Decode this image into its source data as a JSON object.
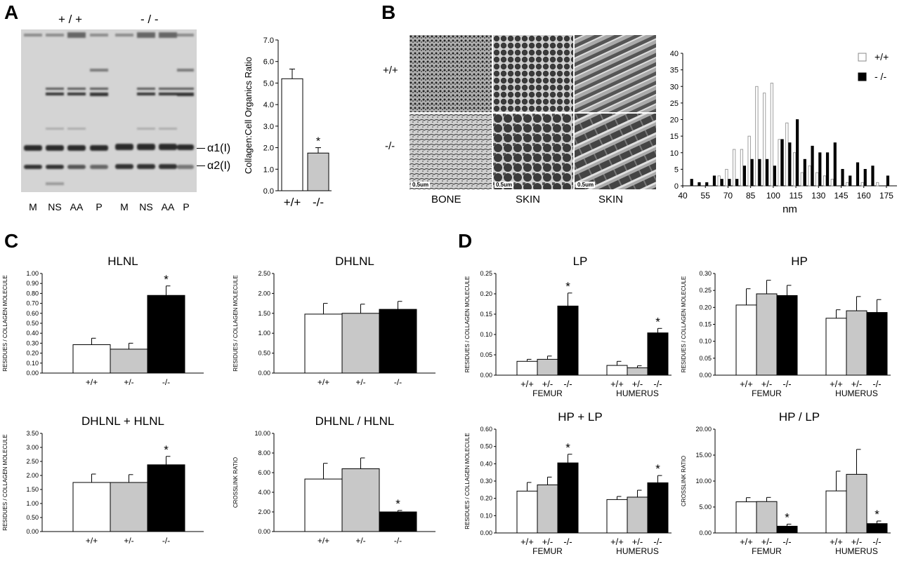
{
  "panels": {
    "A": "A",
    "B": "B",
    "C": "C",
    "D": "D"
  },
  "gel": {
    "genotypes": [
      "+ / +",
      "- / -"
    ],
    "lanes": [
      "M",
      "NS",
      "AA",
      "P",
      "M",
      "NS",
      "AA",
      "P"
    ],
    "bands": [
      "α1(I)",
      "α2(I)"
    ]
  },
  "em": {
    "rows": [
      "+/+",
      "-/-"
    ],
    "columns": [
      "BONE",
      "SKIN",
      "SKIN"
    ],
    "scale_bar": "0.5um"
  },
  "chart_data": [
    {
      "id": "ratio",
      "type": "bar",
      "ylabel": "Collagen:Cell Organics Ratio",
      "ylim": [
        0,
        7
      ],
      "yticks": [
        "0.0",
        "1.0",
        "2.0",
        "3.0",
        "4.0",
        "5.0",
        "6.0",
        "7.0"
      ],
      "categories": [
        "+/+",
        "-/-"
      ],
      "values": [
        5.2,
        1.75
      ],
      "errors": [
        0.45,
        0.25
      ],
      "colors": [
        "#ffffff",
        "#c8c8c8"
      ],
      "sig": [
        "",
        "*"
      ]
    },
    {
      "id": "hist",
      "type": "bar",
      "xlabel": "nm",
      "ylim": [
        0,
        40
      ],
      "yticks": [
        "0",
        "5",
        "10",
        "15",
        "20",
        "25",
        "30",
        "35",
        "40"
      ],
      "xticks": [
        "40",
        "55",
        "70",
        "85",
        "100",
        "115",
        "130",
        "145",
        "160",
        "175"
      ],
      "x": [
        45,
        50,
        55,
        60,
        65,
        70,
        75,
        80,
        85,
        90,
        95,
        100,
        105,
        110,
        115,
        120,
        125,
        130,
        135,
        140,
        145,
        150,
        155,
        160,
        165,
        170,
        175
      ],
      "series": [
        {
          "name": "+/+",
          "color": "#ffffff",
          "values": [
            0,
            0,
            0,
            0,
            3,
            5,
            11,
            11,
            15,
            30,
            28,
            31,
            14,
            19,
            10,
            4,
            6,
            4,
            3,
            2,
            0,
            1,
            0,
            1,
            0,
            1,
            0
          ]
        },
        {
          "name": "- /-",
          "color": "#000000",
          "values": [
            2,
            1,
            1,
            3,
            2,
            2,
            2,
            6,
            8,
            8,
            8,
            6,
            14,
            13,
            20,
            8,
            12,
            10,
            10,
            13,
            5,
            3,
            7,
            5,
            6,
            0,
            3
          ]
        }
      ]
    },
    {
      "id": "HLNL",
      "type": "bar",
      "title": "HLNL",
      "ylabel": "RESIDUES / COLLAGEN MOLECULE",
      "ylim": [
        0,
        1.0
      ],
      "yticks": [
        "0.00",
        "0.10",
        "0.20",
        "0.30",
        "0.40",
        "0.50",
        "0.60",
        "0.70",
        "0.80",
        "0.90",
        "1.00"
      ],
      "categories": [
        "+/+",
        "+/-",
        "-/-"
      ],
      "values": [
        0.285,
        0.24,
        0.78
      ],
      "errors": [
        0.065,
        0.06,
        0.095
      ],
      "colors": [
        "#ffffff",
        "#c8c8c8",
        "#000000"
      ],
      "sig": [
        "",
        "",
        "*"
      ]
    },
    {
      "id": "DHLNL",
      "type": "bar",
      "title": "DHLNL",
      "ylabel": "RESIDUES / COLLAGEN MOLECULE",
      "ylim": [
        0,
        2.5
      ],
      "yticks": [
        "0.00",
        "0.50",
        "1.00",
        "1.50",
        "2.00",
        "2.50"
      ],
      "categories": [
        "+/+",
        "+/-",
        "-/-"
      ],
      "values": [
        1.48,
        1.5,
        1.6
      ],
      "errors": [
        0.27,
        0.23,
        0.2
      ],
      "colors": [
        "#ffffff",
        "#c8c8c8",
        "#000000"
      ],
      "sig": [
        "",
        "",
        ""
      ]
    },
    {
      "id": "DHLNL_HLNL_sum",
      "type": "bar",
      "title": "DHLNL + HLNL",
      "ylabel": "RESIDUES / COLLAGEN MOLECULE",
      "ylim": [
        0,
        3.5
      ],
      "yticks": [
        "0.00",
        "0.50",
        "1.00",
        "1.50",
        "2.00",
        "2.50",
        "3.00",
        "3.50"
      ],
      "categories": [
        "+/+",
        "+/-",
        "-/-"
      ],
      "values": [
        1.75,
        1.75,
        2.38
      ],
      "errors": [
        0.3,
        0.28,
        0.3
      ],
      "colors": [
        "#ffffff",
        "#c8c8c8",
        "#000000"
      ],
      "sig": [
        "",
        "",
        "*"
      ]
    },
    {
      "id": "DHLNL_HLNL_ratio",
      "type": "bar",
      "title": "DHLNL / HLNL",
      "ylabel": "CROSSLINK RATIO",
      "ylim": [
        0,
        10
      ],
      "yticks": [
        "0.00",
        "2.00",
        "4.00",
        "6.00",
        "8.00",
        "10.00"
      ],
      "categories": [
        "+/+",
        "+/-",
        "-/-"
      ],
      "values": [
        5.35,
        6.4,
        2.0
      ],
      "errors": [
        1.6,
        1.1,
        0.15
      ],
      "colors": [
        "#ffffff",
        "#c8c8c8",
        "#000000"
      ],
      "sig": [
        "",
        "",
        "*"
      ]
    },
    {
      "id": "LP",
      "type": "bar",
      "title": "LP",
      "ylabel": "RESIDUES / COLLAGEN MOLECULE",
      "ylim": [
        0,
        0.25
      ],
      "yticks": [
        "0.00",
        "0.05",
        "0.10",
        "0.15",
        "0.20",
        "0.25"
      ],
      "groups": [
        "FEMUR",
        "HUMERUS"
      ],
      "categories": [
        "+/+",
        "+/-",
        "-/-"
      ],
      "values": [
        [
          0.034,
          0.039,
          0.17
        ],
        [
          0.024,
          0.018,
          0.104
        ]
      ],
      "errors": [
        [
          0.005,
          0.008,
          0.032
        ],
        [
          0.01,
          0.005,
          0.011
        ]
      ],
      "colors": [
        "#ffffff",
        "#c8c8c8",
        "#000000"
      ],
      "sig": [
        [
          "",
          "",
          "*"
        ],
        [
          "",
          "",
          "*"
        ]
      ]
    },
    {
      "id": "HP",
      "type": "bar",
      "title": "HP",
      "ylabel": "RESIDUES / COLLAGEN MOLECULE",
      "ylim": [
        0,
        0.3
      ],
      "yticks": [
        "0.00",
        "0.05",
        "0.10",
        "0.15",
        "0.20",
        "0.25",
        "0.30"
      ],
      "groups": [
        "FEMUR",
        "HUMERUS"
      ],
      "categories": [
        "+/+",
        "+/-",
        "-/-"
      ],
      "values": [
        [
          0.207,
          0.24,
          0.235
        ],
        [
          0.168,
          0.19,
          0.185
        ]
      ],
      "errors": [
        [
          0.048,
          0.04,
          0.03
        ],
        [
          0.025,
          0.042,
          0.038
        ]
      ],
      "colors": [
        "#ffffff",
        "#c8c8c8",
        "#000000"
      ],
      "sig": [
        [
          "",
          "",
          ""
        ],
        [
          "",
          "",
          ""
        ]
      ]
    },
    {
      "id": "HP_LP_sum",
      "type": "bar",
      "title": "HP + LP",
      "ylabel": "RESIDUES / COLLAGEN MOLECULE",
      "ylim": [
        0,
        0.6
      ],
      "yticks": [
        "0.00",
        "0.10",
        "0.20",
        "0.30",
        "0.40",
        "0.50",
        "0.60"
      ],
      "groups": [
        "FEMUR",
        "HUMERUS"
      ],
      "categories": [
        "+/+",
        "+/-",
        "-/-"
      ],
      "values": [
        [
          0.242,
          0.278,
          0.405
        ],
        [
          0.193,
          0.207,
          0.29
        ]
      ],
      "errors": [
        [
          0.05,
          0.045,
          0.05
        ],
        [
          0.018,
          0.04,
          0.042
        ]
      ],
      "colors": [
        "#ffffff",
        "#c8c8c8",
        "#000000"
      ],
      "sig": [
        [
          "",
          "",
          "*"
        ],
        [
          "",
          "",
          "*"
        ]
      ]
    },
    {
      "id": "HP_LP_ratio",
      "type": "bar",
      "title": "HP / LP",
      "ylabel": "CROSSLINK RATIO",
      "ylim": [
        0,
        20
      ],
      "yticks": [
        "0.00",
        "5.00",
        "10.00",
        "15.00",
        "20.00"
      ],
      "groups": [
        "FEMUR",
        "HUMERUS"
      ],
      "categories": [
        "+/+",
        "+/-",
        "-/-"
      ],
      "values": [
        [
          6.0,
          6.05,
          1.3
        ],
        [
          8.1,
          11.3,
          1.8
        ]
      ],
      "errors": [
        [
          0.8,
          0.8,
          0.4
        ],
        [
          3.8,
          4.8,
          0.5
        ]
      ],
      "colors": [
        "#ffffff",
        "#c8c8c8",
        "#000000"
      ],
      "sig": [
        [
          "",
          "",
          "*"
        ],
        [
          "",
          "",
          "*"
        ]
      ]
    }
  ]
}
